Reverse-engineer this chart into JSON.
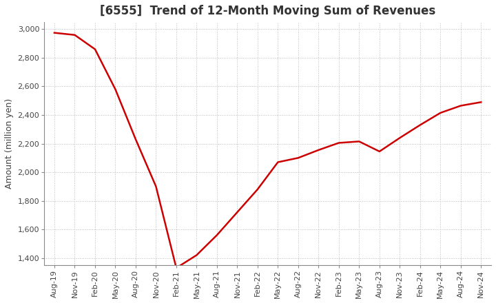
{
  "title": "[6555]  Trend of 12-Month Moving Sum of Revenues",
  "ylabel": "Amount (million yen)",
  "line_color": "#cc0000",
  "line_width": 1.8,
  "background_color": "#ffffff",
  "grid_color": "#bbbbbb",
  "ylim": [
    1350,
    3050
  ],
  "yticks": [
    1400,
    1600,
    1800,
    2000,
    2200,
    2400,
    2600,
    2800,
    3000
  ],
  "x_labels": [
    "Aug-19",
    "Nov-19",
    "Feb-20",
    "May-20",
    "Aug-20",
    "Nov-20",
    "Feb-21",
    "May-21",
    "Aug-21",
    "Nov-21",
    "Feb-22",
    "May-22",
    "Aug-22",
    "Nov-22",
    "Feb-23",
    "May-23",
    "Aug-23",
    "Nov-23",
    "Feb-24",
    "May-24",
    "Aug-24",
    "Nov-24"
  ],
  "values": [
    2975,
    2960,
    2860,
    2580,
    2230,
    1900,
    1330,
    1420,
    1560,
    1720,
    1880,
    2070,
    2100,
    2155,
    2205,
    2215,
    2145,
    2240,
    2330,
    2415,
    2465,
    2490
  ],
  "title_fontsize": 12,
  "ylabel_fontsize": 9,
  "tick_fontsize": 8
}
